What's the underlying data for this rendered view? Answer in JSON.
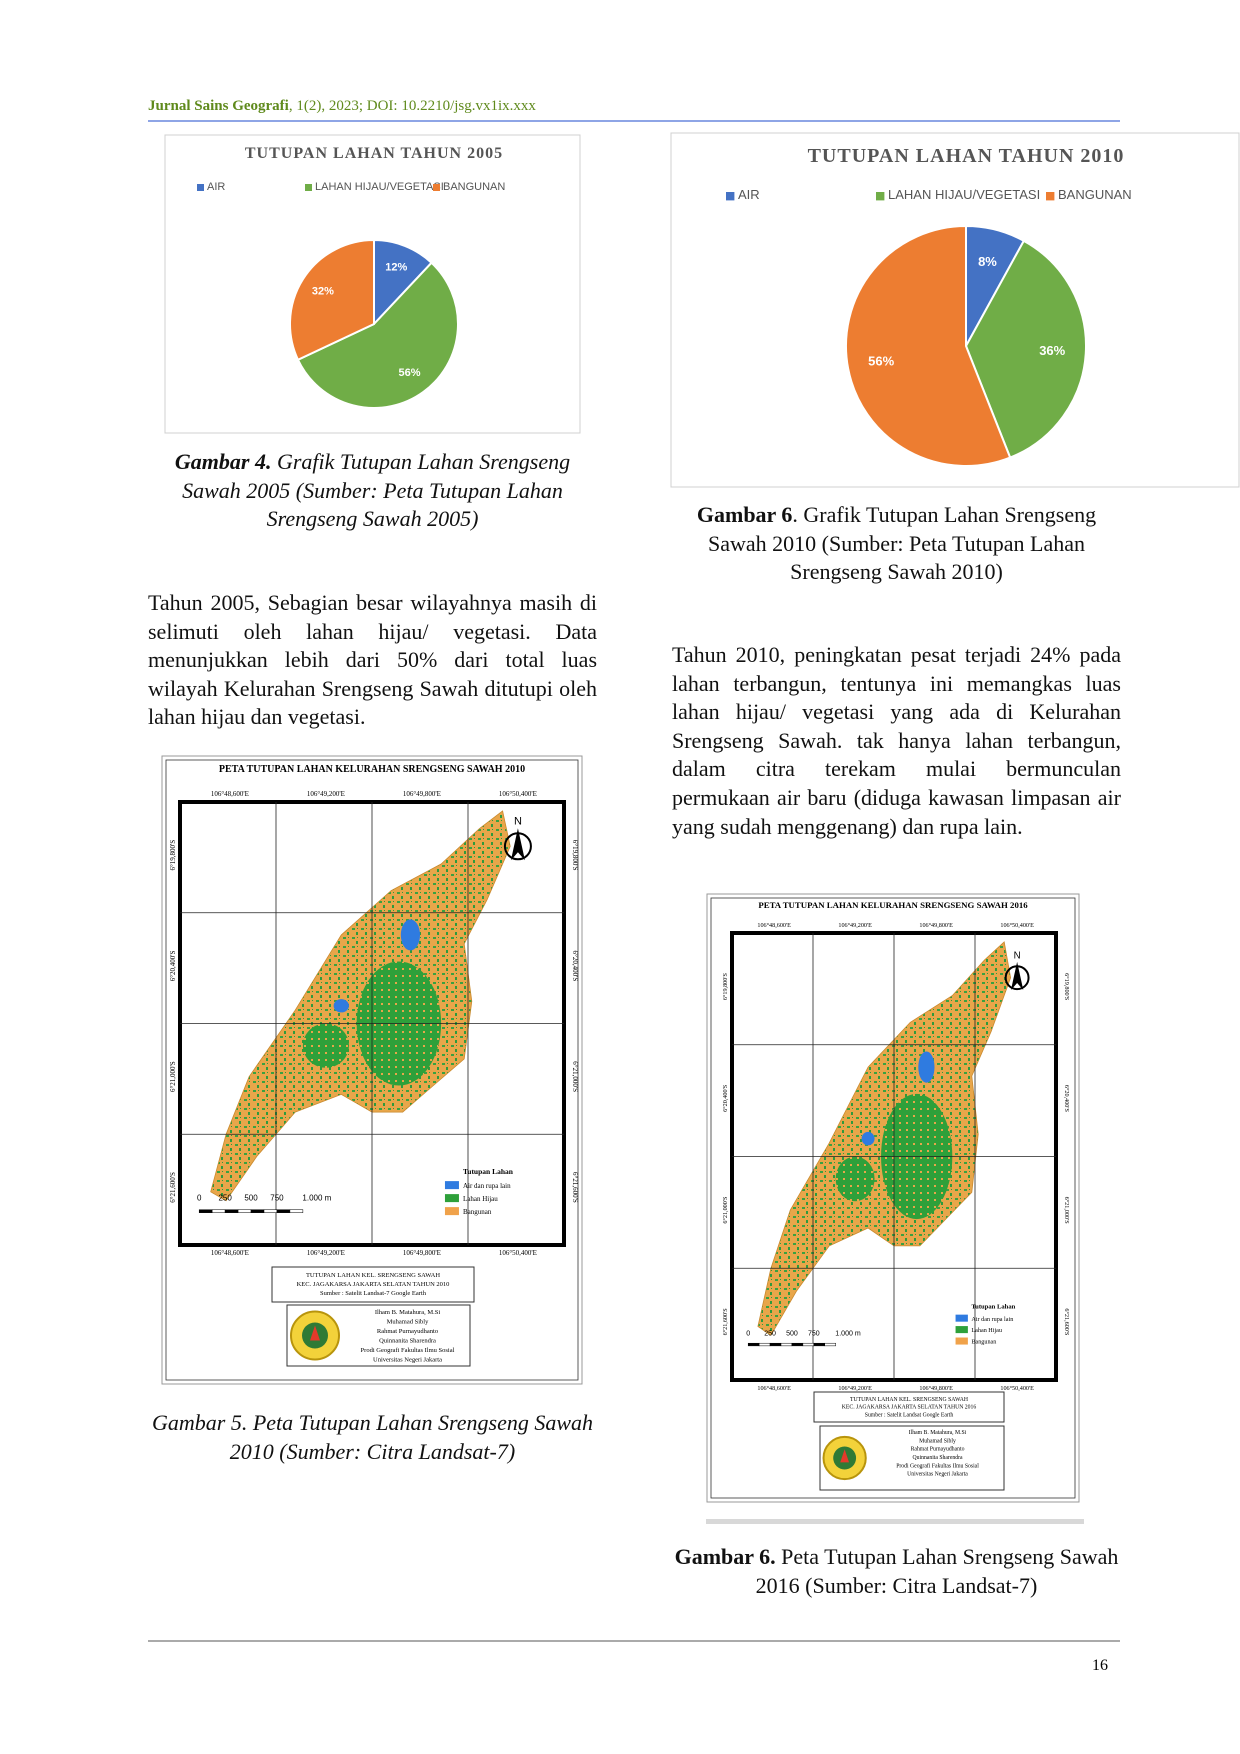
{
  "header": {
    "journal": "Jurnal Sains Geografi",
    "citation": ", 1(2), 2023; DOI: 10.2210/jsg.vx1ix.xxx"
  },
  "chart_data": [
    {
      "type": "pie",
      "title": "TUTUPAN LAHAN TAHUN 2005",
      "categories": [
        "AIR",
        "LAHAN HIJAU/VEGETASI",
        "BANGUNAN"
      ],
      "values": [
        12,
        56,
        32
      ],
      "value_labels": [
        "12%",
        "56%",
        "32%"
      ],
      "colors": [
        "#4472c4",
        "#70ad47",
        "#ed7d31"
      ],
      "legend": "top"
    },
    {
      "type": "pie",
      "title": "TUTUPAN LAHAN TAHUN 2010",
      "categories": [
        "AIR",
        "LAHAN HIJAU/VEGETASI",
        "BANGUNAN"
      ],
      "values": [
        8,
        36,
        56
      ],
      "value_labels": [
        "8%",
        "36%",
        "56%"
      ],
      "colors": [
        "#4472c4",
        "#70ad47",
        "#ed7d31"
      ],
      "legend": "top"
    }
  ],
  "captions": [
    {
      "label": "Gambar 4.",
      "text": " Grafik Tutupan Lahan Srengseng Sawah 2005 (Sumber: Peta Tutupan Lahan Srengseng Sawah 2005)"
    },
    {
      "label": "Gambar 6",
      "text": ". Grafik Tutupan Lahan Srengseng Sawah 2010 (Sumber: Peta Tutupan Lahan Srengseng Sawah 2010)"
    },
    {
      "label": "",
      "text": "Gambar 5. Peta Tutupan Lahan Srengseng Sawah 2010 (Sumber: Citra Landsat-7)"
    },
    {
      "label": "Gambar 6.",
      "text": " Peta Tutupan Lahan Srengseng Sawah 2016 (Sumber: Citra Landsat-7)"
    }
  ],
  "paragraphs": [
    "Tahun 2005, Sebagian besar wilayahnya masih di selimuti oleh lahan hijau/ vegetasi. Data menunjukkan lebih dari 50% dari total luas wilayah Kelurahan Srengseng Sawah ditutupi oleh lahan hijau dan vegetasi.",
    "Tahun 2010, peningkatan pesat terjadi 24% pada lahan terbangun, tentunya ini memangkas luas lahan hijau/ vegetasi yang ada di Kelurahan Srengseng Sawah. tak hanya lahan terbangun, dalam citra terekam mulai bermunculan permukaan air baru (diduga kawasan limpasan air yang sudah menggenang) dan rupa lain."
  ],
  "maps": [
    {
      "title": "PETA TUTUPAN LAHAN KELURAHAN SRENGSENG SAWAH 2010",
      "x_labels": [
        "106°48,600'E",
        "106°49,200'E",
        "106°49,800'E",
        "106°50,400'E"
      ],
      "y_labels": [
        "6°19,800'S",
        "6°20,400'S",
        "6°21,000'S",
        "6°21,600'S"
      ],
      "north": "N",
      "legend_title": "Tutupan Lahan",
      "legend_items": [
        "Air dan rupa lain",
        "Lahan Hijau",
        "Bangunan"
      ],
      "scale": [
        "0",
        "250",
        "500",
        "750",
        "1.000 m"
      ],
      "info": [
        "TUTUPAN LAHAN KEL. SRENGSENG SAWAH",
        "KEC. JAGAKARSA JAKARTA SELATAN TAHUN 2010",
        "Sumber : Satelit Landsat-7 Google Earth"
      ],
      "credits": [
        "Ilham B. Matahura, M.Si",
        "Muhamad Sibly",
        "Rahmat Purnayudhanto",
        "Quinnanita Sharendra",
        "Prodi Geografi Fakultas Ilmu Sosial",
        "Universitas Negeri Jakarta"
      ]
    },
    {
      "title": "PETA TUTUPAN LAHAN KELURAHAN SRENGSENG SAWAH 2016",
      "x_labels": [
        "106°48,600'E",
        "106°49,200'E",
        "106°49,800'E",
        "106°50,400'E"
      ],
      "y_labels": [
        "6°19,800'S",
        "6°20,400'S",
        "6°21,000'S",
        "6°21,600'S"
      ],
      "north": "N",
      "legend_title": "Tutupan Lahan",
      "legend_items": [
        "Air dan rupa lain",
        "Lahan Hijau",
        "Bangunan"
      ],
      "scale": [
        "0",
        "250",
        "500",
        "750",
        "1.000 m"
      ],
      "info": [
        "TUTUPAN LAHAN KEL. SRENGSENG SAWAH",
        "KEC. JAGAKARSA JAKARTA SELATAN TAHUN 2016",
        "Sumber : Satelit Landsat Google Earth"
      ],
      "credits": [
        "Ilham B. Matahura, M.Si",
        "Muhamad Sibly",
        "Rahmat Purnayudhanto",
        "Quinnanita Sharendra",
        "Prodi Geografi Fakultas Ilmu Sosial",
        "Universitas Negeri Jakarta"
      ]
    }
  ],
  "footer": {
    "page": "16"
  }
}
